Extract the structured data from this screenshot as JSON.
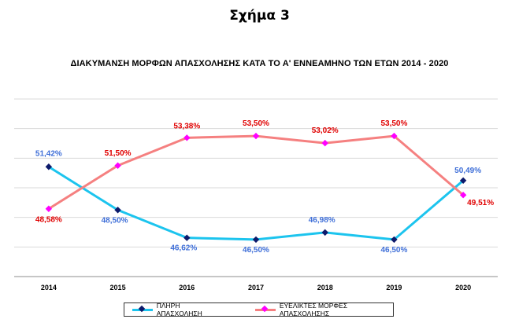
{
  "figure_label": "Σχήμα 3",
  "chart_data": {
    "type": "line",
    "title": "ΔΙΑΚΥΜΑΝΣΗ ΜΟΡΦΩΝ ΑΠΑΣΧΟΛΗΣΗΣ ΚΑΤΑ ΤΟ Α' ΕΝΝΕΑΜΗΝΟ ΤΩΝ ΕΤΩΝ 2014 - 2020",
    "categories": [
      "2014",
      "2015",
      "2016",
      "2017",
      "2018",
      "2019",
      "2020"
    ],
    "ylim": [
      44,
      56
    ],
    "grid": true,
    "legend_position": "bottom",
    "series": [
      {
        "name": "ΠΛΗΡΗ ΑΠΑΣΧΟΛΗΣΗ",
        "values": [
          51.42,
          48.5,
          46.62,
          46.5,
          46.98,
          46.5,
          50.49
        ],
        "labels": [
          "51,42%",
          "48,50%",
          "46,62%",
          "46,50%",
          "46,98%",
          "46,50%",
          "50,49%"
        ],
        "line_color": "#1cc4ee",
        "marker_color": "#0d1a6b",
        "label_color": "#3f6fd8"
      },
      {
        "name": "ΕΥΕΛΙΚΤΕΣ ΜΟΡΦΕΣ ΑΠΑΣΧΟΛΗΣΗΣ",
        "values": [
          48.58,
          51.5,
          53.38,
          53.5,
          53.02,
          53.5,
          49.51
        ],
        "labels": [
          "48,58%",
          "51,50%",
          "53,38%",
          "53,50%",
          "53,02%",
          "53,50%",
          "49,51%"
        ],
        "line_color": "#f58080",
        "marker_color": "#ff00ff",
        "label_color": "#e00000"
      }
    ]
  }
}
